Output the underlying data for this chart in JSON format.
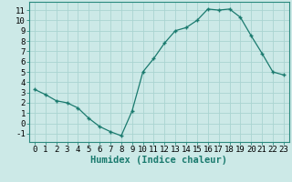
{
  "xlabel": "Humidex (Indice chaleur)",
  "x": [
    0,
    1,
    2,
    3,
    4,
    5,
    6,
    7,
    8,
    9,
    10,
    11,
    12,
    13,
    14,
    15,
    16,
    17,
    18,
    19,
    20,
    21,
    22,
    23
  ],
  "y": [
    3.3,
    2.8,
    2.2,
    2.0,
    1.5,
    0.5,
    -0.3,
    -0.8,
    -1.2,
    1.2,
    5.0,
    6.3,
    7.8,
    9.0,
    9.3,
    10.0,
    11.1,
    11.0,
    11.1,
    10.3,
    8.5,
    6.8,
    5.0,
    4.7
  ],
  "line_color": "#1a7a6e",
  "bg_color": "#cce9e7",
  "grid_color": "#aad4d1",
  "ylim": [
    -1.8,
    11.8
  ],
  "yticks": [
    -1,
    0,
    1,
    2,
    3,
    4,
    5,
    6,
    7,
    8,
    9,
    10,
    11
  ],
  "xticks": [
    0,
    1,
    2,
    3,
    4,
    5,
    6,
    7,
    8,
    9,
    10,
    11,
    12,
    13,
    14,
    15,
    16,
    17,
    18,
    19,
    20,
    21,
    22,
    23
  ],
  "marker": "+",
  "markersize": 3.5,
  "linewidth": 0.9,
  "xlabel_fontsize": 7.5,
  "tick_fontsize": 6.5,
  "spine_color": "#2a8a7e"
}
